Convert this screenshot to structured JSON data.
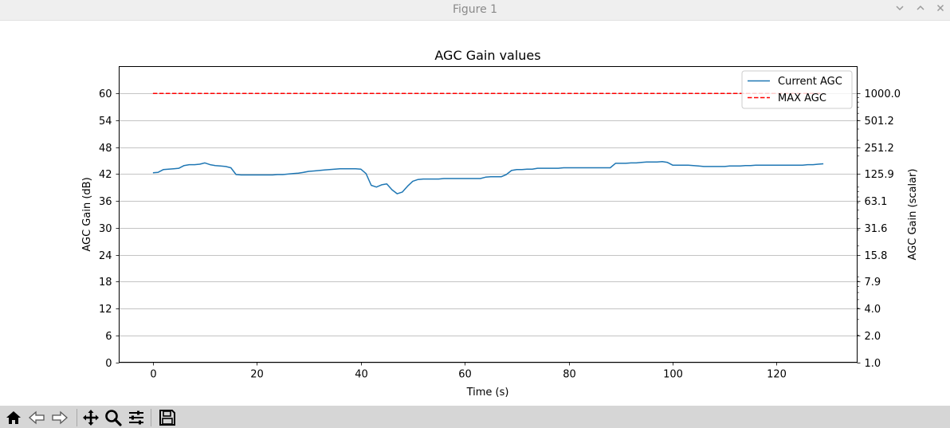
{
  "window": {
    "title": "Figure 1",
    "minimize_icon": "chevron-down-icon",
    "maximize_icon": "chevron-up-icon",
    "close_icon": "close-icon"
  },
  "toolbar": {
    "buttons": [
      "home-icon",
      "back-icon",
      "forward-icon",
      "pan-icon",
      "zoom-icon",
      "configure-subplots-icon",
      "save-icon"
    ]
  },
  "colors": {
    "series_current": "#1f77b4",
    "series_max": "#ff0000",
    "grid": "#b0b0b0"
  },
  "chart_data": {
    "type": "line",
    "title": "AGC Gain values",
    "xlabel": "Time (s)",
    "ylabel": "AGC Gain (dB)",
    "ylabel_right": "AGC Gain (scalar)",
    "xlim": [
      -6.5,
      135.5
    ],
    "ylim": [
      0,
      66
    ],
    "xticks": [
      "0",
      "20",
      "40",
      "60",
      "80",
      "100",
      "120"
    ],
    "yticks": [
      "0",
      "6",
      "12",
      "18",
      "24",
      "30",
      "36",
      "42",
      "48",
      "54",
      "60"
    ],
    "yticks_right": [
      "1.0",
      "2.0",
      "4.0",
      "7.9",
      "15.8",
      "31.6",
      "63.1",
      "125.9",
      "251.2",
      "501.2",
      "1000.0"
    ],
    "grid": "horizontal",
    "legend_position": "top-right",
    "series": [
      {
        "name": "Current AGC",
        "style": "solid",
        "x": [
          0,
          1,
          2,
          3,
          4,
          5,
          6,
          7,
          8,
          9,
          10,
          11,
          12,
          13,
          14,
          15,
          16,
          17,
          18,
          19,
          20,
          21,
          22,
          23,
          24,
          25,
          26,
          27,
          28,
          29,
          30,
          31,
          32,
          33,
          34,
          35,
          36,
          37,
          38,
          39,
          40,
          41,
          42,
          43,
          44,
          45,
          46,
          47,
          48,
          49,
          50,
          51,
          52,
          53,
          54,
          55,
          56,
          57,
          58,
          59,
          60,
          61,
          62,
          63,
          64,
          65,
          66,
          67,
          68,
          69,
          70,
          71,
          72,
          73,
          74,
          75,
          76,
          77,
          78,
          79,
          80,
          81,
          82,
          83,
          84,
          85,
          86,
          87,
          88,
          89,
          90,
          91,
          92,
          93,
          94,
          95,
          96,
          97,
          98,
          99,
          100,
          101,
          102,
          103,
          104,
          105,
          106,
          107,
          108,
          109,
          110,
          111,
          112,
          113,
          114,
          115,
          116,
          117,
          118,
          119,
          120,
          121,
          122,
          123,
          124,
          125,
          126,
          127,
          128,
          129
        ],
        "values": [
          42.3,
          42.4,
          43.0,
          43.1,
          43.2,
          43.3,
          43.9,
          44.1,
          44.1,
          44.2,
          44.5,
          44.1,
          43.9,
          43.8,
          43.7,
          43.4,
          41.9,
          41.8,
          41.8,
          41.8,
          41.8,
          41.8,
          41.8,
          41.8,
          41.9,
          41.9,
          42.0,
          42.1,
          42.2,
          42.4,
          42.6,
          42.7,
          42.8,
          42.9,
          43.0,
          43.1,
          43.2,
          43.2,
          43.2,
          43.2,
          43.1,
          42.1,
          39.5,
          39.1,
          39.6,
          39.8,
          38.5,
          37.6,
          38.0,
          39.3,
          40.4,
          40.8,
          40.9,
          40.9,
          40.9,
          40.9,
          41.0,
          41.0,
          41.0,
          41.0,
          41.0,
          41.0,
          41.0,
          41.0,
          41.3,
          41.4,
          41.4,
          41.4,
          41.9,
          42.8,
          43.0,
          43.0,
          43.1,
          43.1,
          43.3,
          43.3,
          43.3,
          43.3,
          43.3,
          43.4,
          43.4,
          43.4,
          43.4,
          43.4,
          43.4,
          43.4,
          43.4,
          43.4,
          43.4,
          44.4,
          44.4,
          44.4,
          44.5,
          44.5,
          44.6,
          44.7,
          44.7,
          44.7,
          44.8,
          44.6,
          44.0,
          44.0,
          44.0,
          44.0,
          43.9,
          43.8,
          43.7,
          43.7,
          43.7,
          43.7,
          43.7,
          43.8,
          43.8,
          43.8,
          43.9,
          43.9,
          44.0,
          44.0,
          44.0,
          44.0,
          44.0,
          44.0,
          44.0,
          44.0,
          44.0,
          44.0,
          44.1,
          44.1,
          44.2,
          44.3
        ]
      },
      {
        "name": "MAX AGC",
        "style": "dashed",
        "x": [
          0,
          129
        ],
        "values": [
          60,
          60
        ]
      }
    ]
  }
}
